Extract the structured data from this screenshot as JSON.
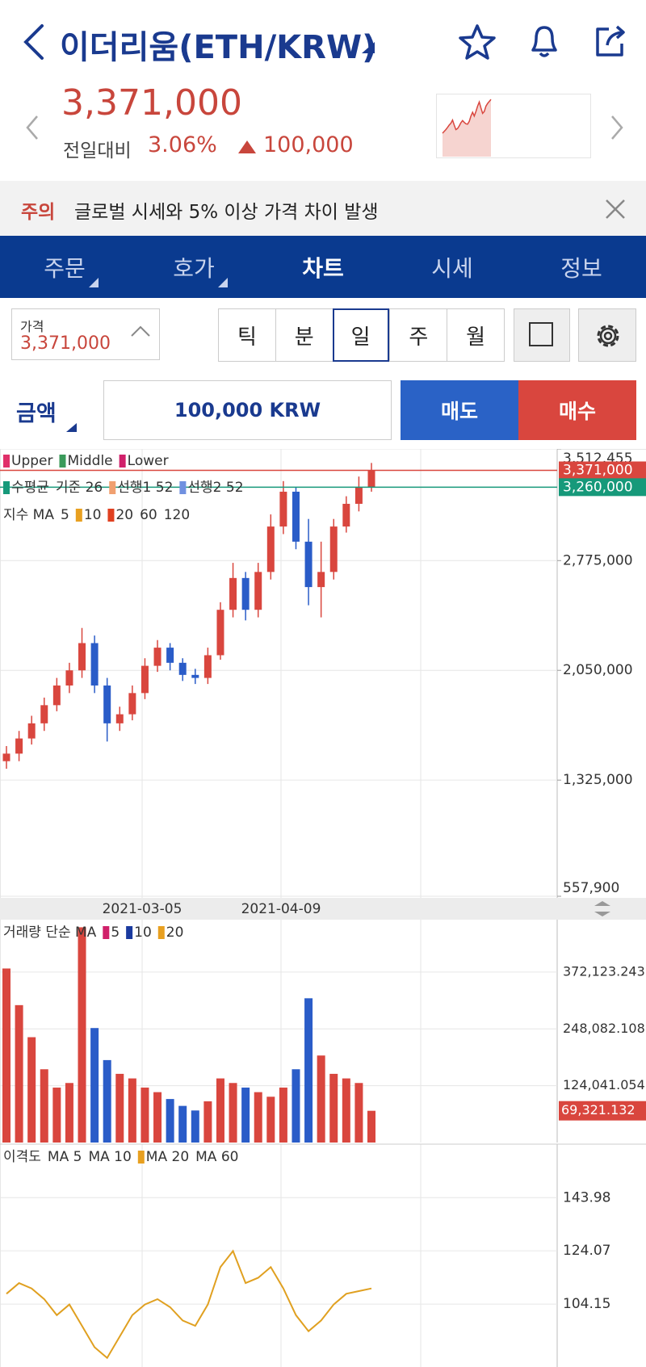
{
  "header": {
    "title": "이더리움(ETH/KRW)",
    "price": "3,371,000",
    "change_label": "전일대비",
    "change_rate": "3.06%",
    "change_amount": "100,000"
  },
  "notice": {
    "tag": "주의",
    "text": "글로벌 시세와 5% 이상 가격 차이 발생"
  },
  "tabs": [
    "주문",
    "호가",
    "차트",
    "시세",
    "정보"
  ],
  "controls": {
    "price_label": "가격",
    "price": "3,371,000",
    "periods": [
      "틱",
      "분",
      "일",
      "주",
      "월"
    ]
  },
  "order": {
    "amount_label": "금액",
    "amount": "100,000 KRW",
    "sell": "매도",
    "buy": "매수"
  },
  "price_chart": {
    "type": "candlestick",
    "legend_rows": [
      [
        "Upper",
        "Middle",
        "Lower"
      ],
      [
        "수평균",
        "기준 26",
        "선행1 52",
        "선행2 52"
      ],
      [
        "지수 MA",
        "5",
        "10",
        "20",
        "60",
        "120"
      ]
    ],
    "x_labels": [
      "2021-03-05",
      "2021-04-09"
    ],
    "open": [
      1450000,
      1500000,
      1600000,
      1700000,
      1820000,
      1950000,
      2050000,
      2230000,
      1950000,
      1700000,
      1760000,
      1900000,
      2080000,
      2200000,
      2100000,
      2020000,
      2000000,
      2150000,
      2450000,
      2660000,
      2450000,
      2700000,
      3000000,
      3230000,
      2900000,
      2600000,
      2700000,
      3000000,
      3150000,
      3260000
    ],
    "high": [
      1550000,
      1650000,
      1750000,
      1870000,
      2000000,
      2100000,
      2330000,
      2280000,
      2000000,
      1810000,
      1950000,
      2130000,
      2250000,
      2230000,
      2130000,
      2060000,
      2200000,
      2500000,
      2760000,
      2700000,
      2760000,
      3080000,
      3300000,
      3260000,
      3050000,
      2900000,
      3050000,
      3200000,
      3330000,
      3420000
    ],
    "low": [
      1400000,
      1450000,
      1560000,
      1650000,
      1780000,
      1900000,
      2000000,
      1900000,
      1580000,
      1650000,
      1720000,
      1860000,
      2040000,
      2050000,
      1980000,
      1960000,
      1960000,
      2120000,
      2400000,
      2380000,
      2400000,
      2650000,
      2950000,
      2850000,
      2480000,
      2400000,
      2650000,
      2960000,
      3100000,
      3230000
    ],
    "close": [
      1500000,
      1600000,
      1700000,
      1820000,
      1950000,
      2050000,
      2230000,
      1950000,
      1700000,
      1760000,
      1900000,
      2080000,
      2200000,
      2100000,
      2020000,
      2000000,
      2150000,
      2450000,
      2660000,
      2450000,
      2700000,
      3000000,
      3230000,
      2900000,
      2600000,
      2700000,
      3000000,
      3150000,
      3260000,
      3371000
    ],
    "ylim": [
      557900,
      3512455
    ],
    "yticks": [
      {
        "value": 557900,
        "label": "557,900"
      },
      {
        "value": 1325000,
        "label": "1,325,000"
      },
      {
        "value": 2050000,
        "label": "2,050,000"
      },
      {
        "value": 2775000,
        "label": "2,775,000"
      },
      {
        "value": 3512455,
        "label": "3,512,455"
      }
    ],
    "markers": [
      {
        "value": 3371000,
        "label": "3,371,000",
        "color": "#d9463e"
      },
      {
        "value": 3260000,
        "label": "3,260,000",
        "color": "#16997a"
      }
    ]
  },
  "volume_chart": {
    "type": "bar",
    "legend": [
      "거래량 단순 MA",
      "5",
      "10",
      "20"
    ],
    "values": [
      380000,
      300000,
      230000,
      160000,
      120000,
      130000,
      470000,
      250000,
      180000,
      150000,
      140000,
      120000,
      110000,
      95000,
      80000,
      70000,
      90000,
      140000,
      130000,
      120000,
      110000,
      100000,
      120000,
      160000,
      315000,
      190000,
      150000,
      140000,
      130000,
      69321.132
    ],
    "ylim": [
      0,
      486600
    ],
    "yticks": [
      {
        "value": 124041.054,
        "label": "124,041.054"
      },
      {
        "value": 248082.108,
        "label": "248,082.108"
      },
      {
        "value": 372123.243,
        "label": "372,123.243"
      }
    ],
    "last_label": {
      "value": 69321.132,
      "label": "69,321.132"
    }
  },
  "disparity_chart": {
    "type": "line",
    "legend": [
      "이격도",
      "MA 5",
      "MA 10",
      "MA 20",
      "MA 60"
    ],
    "values": [
      108,
      112,
      110,
      106,
      100,
      104,
      96,
      88,
      84,
      92,
      100,
      104,
      106,
      103,
      98,
      96,
      104,
      118,
      124,
      112,
      114,
      118,
      110,
      100,
      94,
      98,
      104,
      108,
      109,
      110
    ],
    "ylim": [
      80.6,
      164
    ],
    "yticks": [
      104.15,
      124.07,
      143.98
    ],
    "color": "#e0a020"
  }
}
